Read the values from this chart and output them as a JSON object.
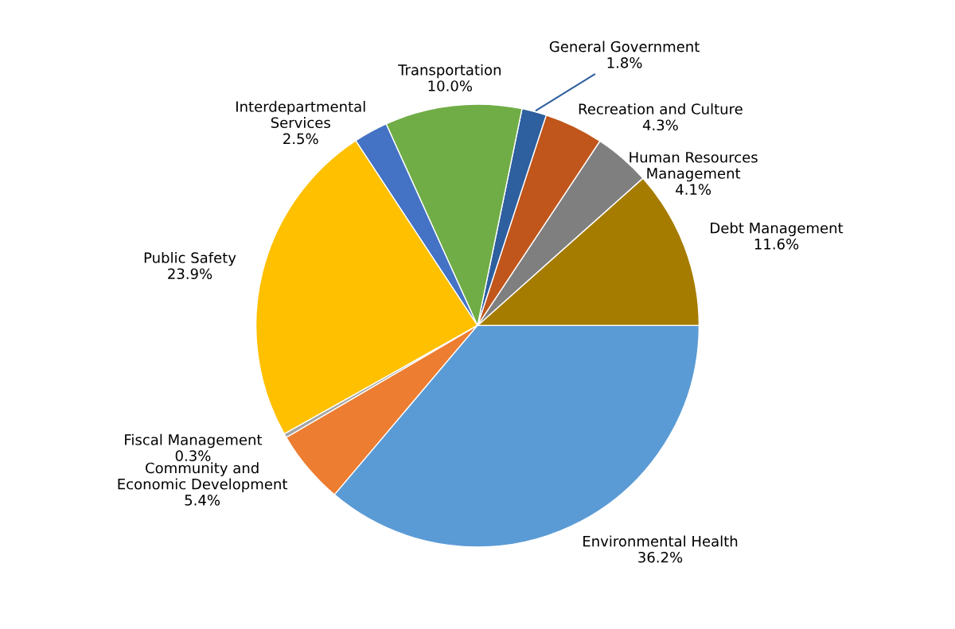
{
  "chart_data": {
    "type": "pie",
    "categories": [
      "Debt Management",
      "Human Resources\nManagement",
      "Recreation and Culture",
      "General Government",
      "Transportation",
      "Interdepartmental\nServices",
      "Public Safety",
      "Fiscal Management",
      "Community and\nEconomic Development",
      "Environmental Health"
    ],
    "values": [
      11.6,
      4.1,
      4.3,
      1.8,
      10.0,
      2.5,
      23.9,
      0.3,
      5.4,
      36.2
    ],
    "value_labels": [
      "11.6%",
      "4.1%",
      "4.3%",
      "1.8%",
      "10.0%",
      "2.5%",
      "23.9%",
      "0.3%",
      "5.4%",
      "36.2%"
    ],
    "colors": [
      "#a67c00",
      "#7f7f7f",
      "#c0561b",
      "#2e5f9e",
      "#70ad47",
      "#4472c4",
      "#ffc000",
      "#a5a5a5",
      "#ed7d31",
      "#5b9bd5"
    ],
    "legend": false
  }
}
